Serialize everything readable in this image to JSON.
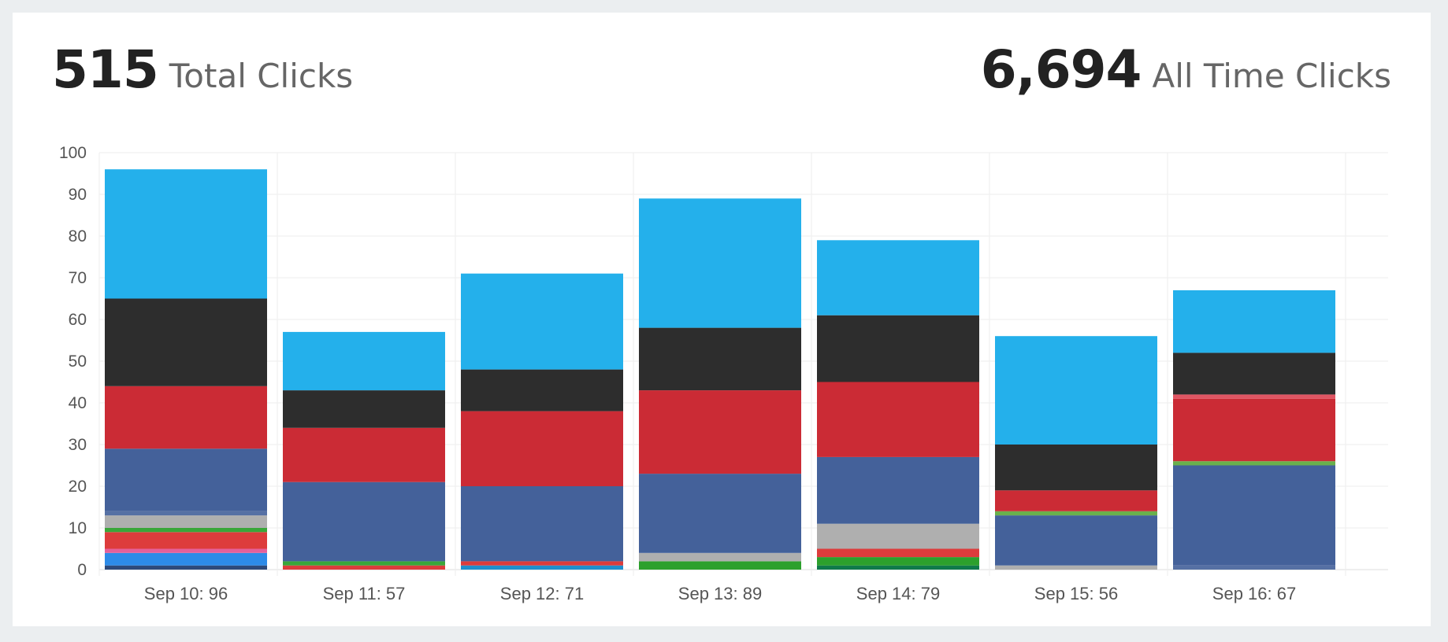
{
  "stats": {
    "total": {
      "value": "515",
      "label": "Total Clicks"
    },
    "all_time": {
      "value": "6,694",
      "label": "All Time Clicks"
    }
  },
  "colors": {
    "background": "#ebeef0",
    "card": "#ffffff",
    "grid": "#eeeeee",
    "axis_text": "#555555"
  },
  "chart_data": {
    "type": "bar",
    "stacked": true,
    "categories": [
      "Sep 10: 96",
      "Sep 11: 57",
      "Sep 12: 71",
      "Sep 13: 89",
      "Sep 14: 79",
      "Sep 15: 56",
      "Sep 16: 67"
    ],
    "totals": [
      96,
      57,
      71,
      89,
      79,
      56,
      67
    ],
    "ylim": [
      0,
      100
    ],
    "yticks": [
      0,
      10,
      20,
      30,
      40,
      50,
      60,
      70,
      80,
      90,
      100
    ],
    "grid": true,
    "legend": "none",
    "series": [
      {
        "color": "#2e4a7a",
        "values": [
          1,
          0,
          0,
          0,
          0,
          0,
          0
        ]
      },
      {
        "color": "#1f8fce",
        "values": [
          0,
          0,
          1,
          0,
          0,
          0,
          0
        ]
      },
      {
        "color": "#2d8be8",
        "values": [
          3,
          0,
          0,
          0,
          0,
          0,
          0
        ]
      },
      {
        "color": "#e5609a",
        "values": [
          1,
          0,
          0,
          0,
          0,
          0,
          0
        ]
      },
      {
        "color": "#0f7a4a",
        "values": [
          0,
          0,
          0,
          0,
          1,
          0,
          0
        ]
      },
      {
        "color": "#2ca02c",
        "values": [
          0,
          0,
          0,
          2,
          2,
          0,
          0
        ]
      },
      {
        "color": "#dd3c3c",
        "values": [
          4,
          1,
          1,
          0,
          2,
          0,
          0
        ]
      },
      {
        "color": "#3aa63a",
        "values": [
          1,
          1,
          0,
          0,
          0,
          0,
          0
        ]
      },
      {
        "color": "#afafaf",
        "values": [
          3,
          0,
          0,
          2,
          6,
          1,
          0
        ]
      },
      {
        "color": "#5670a4",
        "values": [
          1,
          0,
          0,
          0,
          0,
          0,
          1
        ]
      },
      {
        "color": "#44619a",
        "values": [
          15,
          19,
          18,
          19,
          16,
          12,
          24
        ]
      },
      {
        "color": "#6ab04c",
        "values": [
          0,
          0,
          0,
          0,
          0,
          1,
          1
        ]
      },
      {
        "color": "#cb2b35",
        "values": [
          15,
          13,
          18,
          20,
          18,
          5,
          15
        ]
      },
      {
        "color": "#e05563",
        "values": [
          0,
          0,
          0,
          0,
          0,
          0,
          1
        ]
      },
      {
        "color": "#2d2d2d",
        "values": [
          21,
          9,
          10,
          15,
          16,
          11,
          10
        ]
      },
      {
        "color": "#24b0eb",
        "values": [
          31,
          14,
          23,
          31,
          18,
          26,
          15
        ]
      }
    ]
  }
}
